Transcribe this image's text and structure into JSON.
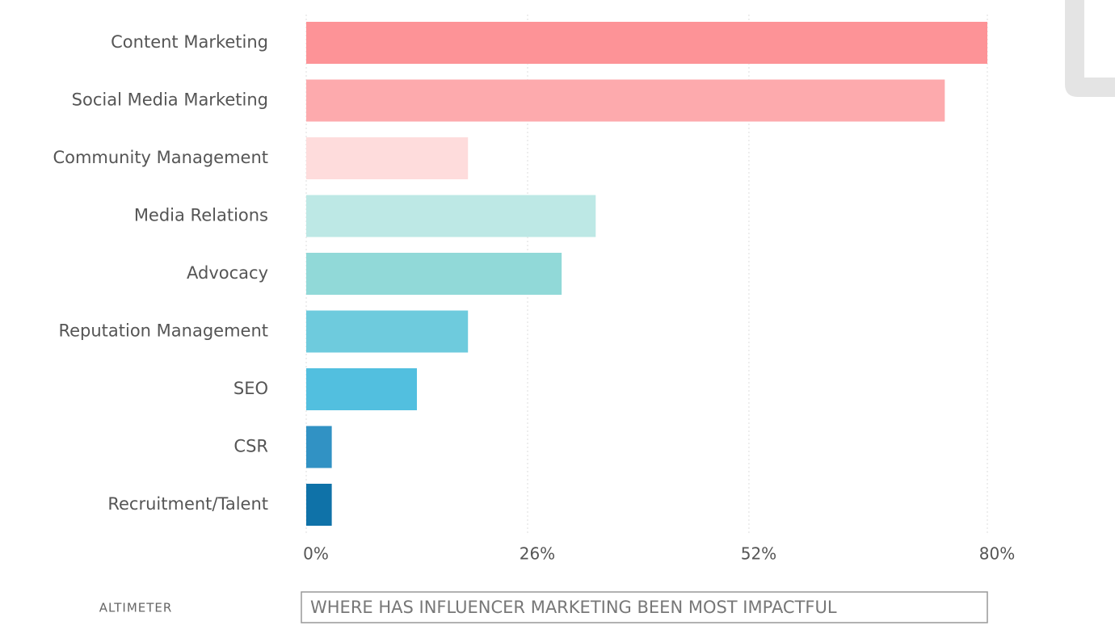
{
  "chart_data": {
    "type": "hbar",
    "title": "WHERE HAS INFLUENCER MARKETING BEEN MOST IMPACTFUL",
    "source": "ALTIMETER",
    "categories": [
      "Content Marketing",
      "Social Media Marketing",
      "Community Management",
      "Media Relations",
      "Advocacy",
      "Reputation Management",
      "SEO",
      "CSR",
      "Recruitment/Talent"
    ],
    "values": [
      80,
      75,
      19,
      34,
      30,
      19,
      13,
      3,
      3
    ],
    "colors": [
      "#fd9397",
      "#fdaaad",
      "#fedcdc",
      "#bde8e5",
      "#91d9d8",
      "#6ecbdd",
      "#52bfdf",
      "#3192c4",
      "#0f72a8"
    ],
    "xlim": [
      0,
      80
    ],
    "xticks": [
      {
        "value": 0,
        "label": "0%"
      },
      {
        "value": 26,
        "label": "26%"
      },
      {
        "value": 52,
        "label": "52%"
      },
      {
        "value": 80,
        "label": "80%"
      }
    ],
    "grid": true
  }
}
